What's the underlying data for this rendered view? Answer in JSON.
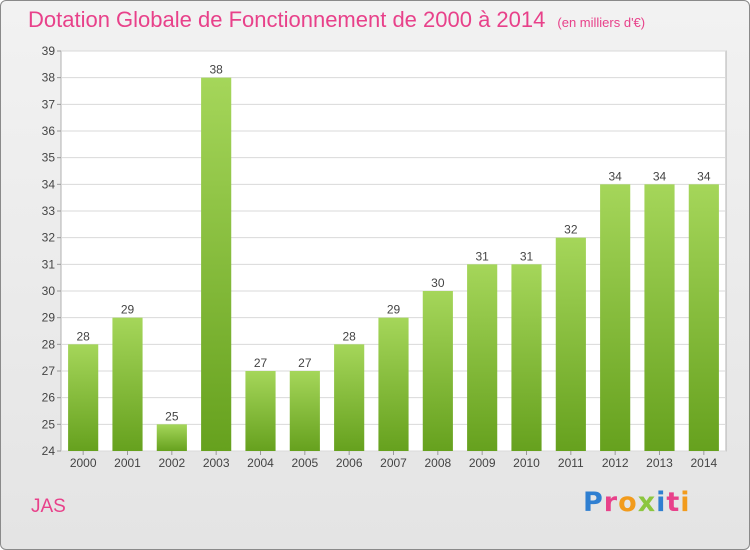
{
  "header": {
    "title": "Dotation Globale de Fonctionnement de 2000 à 2014",
    "subtitle": "(en milliers d'€)"
  },
  "footer": {
    "commune": "JAS",
    "logo": [
      "P",
      "r",
      "o",
      "x",
      "i",
      "t",
      "i"
    ],
    "logo_colors": [
      "#2f7fd1",
      "#e8418a",
      "#f29b1c",
      "#8cc63f",
      "#2f7fd1",
      "#e8418a",
      "#f29b1c"
    ]
  },
  "colors": {
    "bar_light": "#a5d65a",
    "bar_dark": "#66a11e",
    "accent": "#e8418a"
  },
  "chart_data": {
    "type": "bar",
    "categories": [
      "2000",
      "2001",
      "2002",
      "2003",
      "2004",
      "2005",
      "2006",
      "2007",
      "2008",
      "2009",
      "2010",
      "2011",
      "2012",
      "2013",
      "2014"
    ],
    "values": [
      28,
      29,
      25,
      38,
      27,
      27,
      28,
      29,
      30,
      31,
      31,
      32,
      34,
      34,
      34
    ],
    "data_labels": [
      "28",
      "29",
      "25",
      "38",
      "27",
      "27",
      "28",
      "29",
      "30",
      "31",
      "31",
      "32",
      "34",
      "34",
      "34"
    ],
    "y_ticks": [
      24,
      25,
      26,
      27,
      28,
      29,
      30,
      31,
      32,
      33,
      34,
      35,
      36,
      37,
      38,
      39
    ],
    "ylim": [
      24,
      39
    ],
    "grid": "horizontal",
    "legend": "none"
  }
}
